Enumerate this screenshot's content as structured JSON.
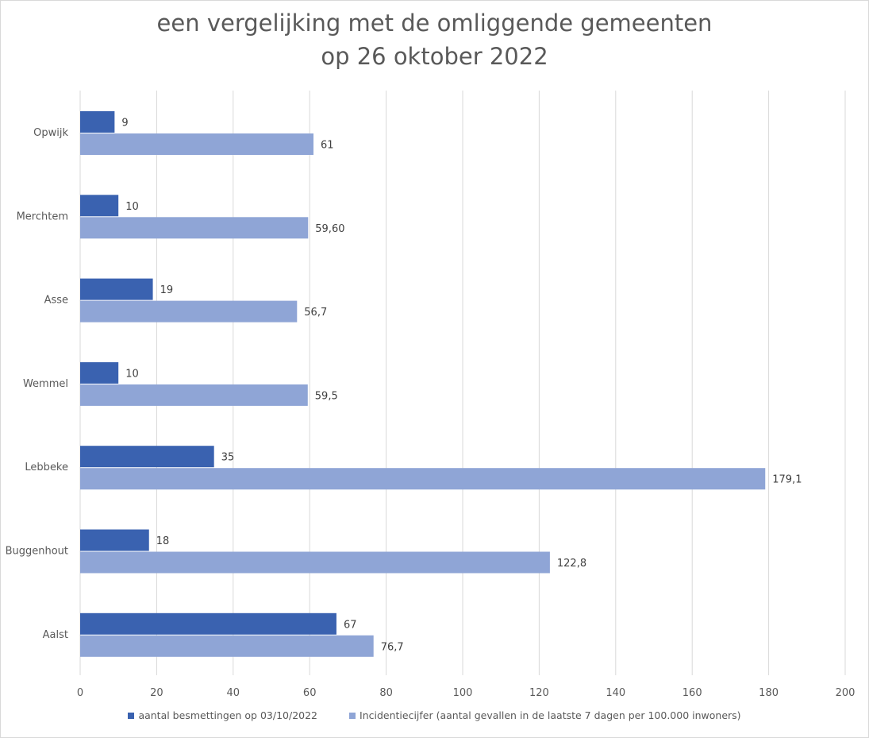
{
  "chart_data": {
    "type": "bar",
    "orientation": "horizontal",
    "title_lines": [
      "een vergelijking met de omliggende gemeenten",
      "op 26 oktober 2022"
    ],
    "categories": [
      "Opwijk",
      "Merchtem",
      "Asse",
      "Wemmel",
      "Lebbeke",
      "Buggenhout",
      "Aalst"
    ],
    "series": [
      {
        "name": "aantal besmettingen op 03/10/2022",
        "color": "#3a62b0",
        "values": [
          9,
          10,
          19,
          10,
          35,
          18,
          67
        ],
        "labels": [
          "9",
          "10",
          "19",
          "10",
          "35",
          "18",
          "67"
        ]
      },
      {
        "name": "Incidentiecijfer (aantal gevallen in de laatste 7 dagen per 100.000 inwoners)",
        "color": "#8fa5d6",
        "values": [
          61,
          59.6,
          56.7,
          59.5,
          179.1,
          122.8,
          76.7
        ],
        "labels": [
          "61",
          "59,60",
          "56,7",
          "59,5",
          "179,1",
          "122,8",
          "76,7"
        ]
      }
    ],
    "xlim": [
      0,
      200
    ],
    "xticks": [
      0,
      20,
      40,
      60,
      80,
      100,
      120,
      140,
      160,
      180,
      200
    ],
    "grid": true,
    "legend_position": "bottom"
  }
}
